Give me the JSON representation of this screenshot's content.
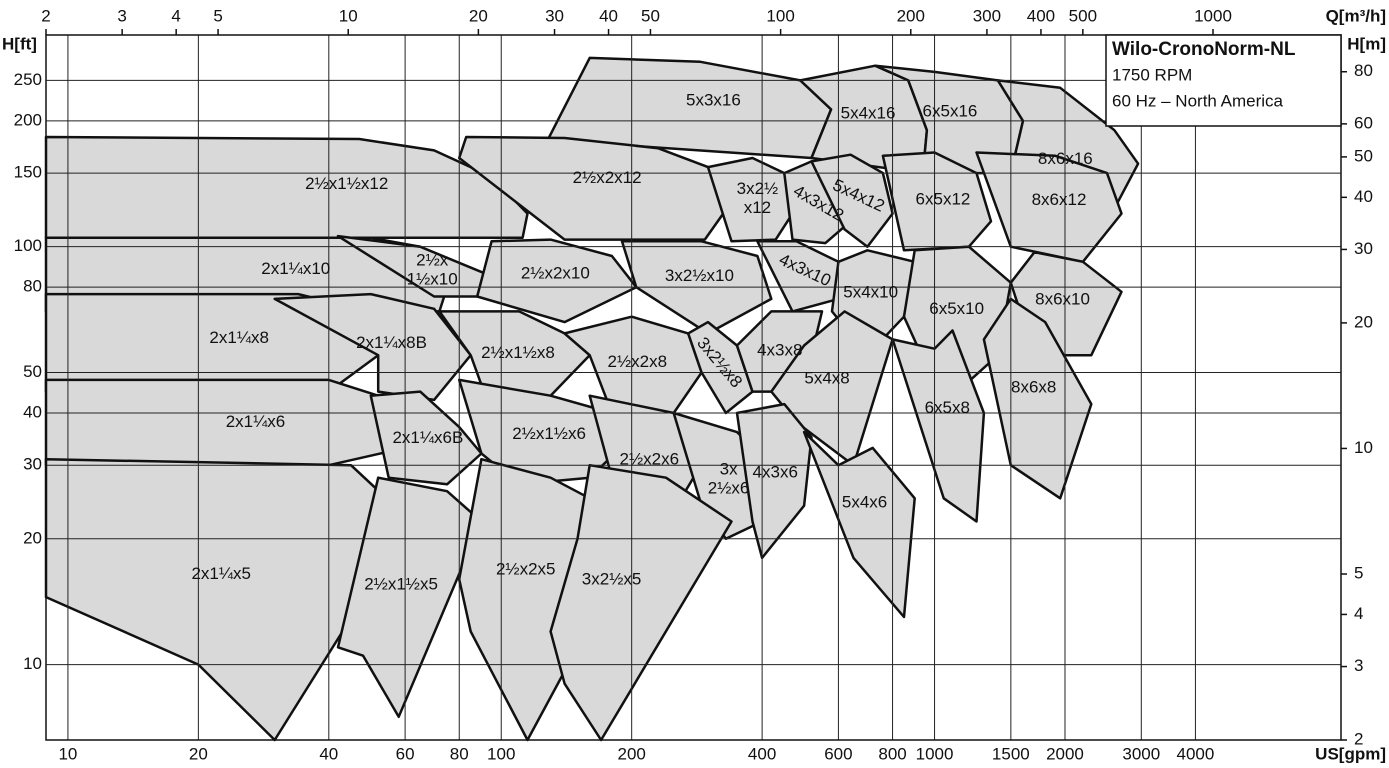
{
  "chart_data": {
    "type": "range-map",
    "title": "Wilo-CronoNorm-NL",
    "subtitle": [
      "1750 RPM",
      "60 Hz – North America"
    ],
    "x_label": "US[gpm]",
    "x2_label": "Q[m³/h]",
    "y_label": "H[ft]",
    "y2_label": "H[m]",
    "log_x": true,
    "log_y": true,
    "grid": true,
    "color": "#d9d9d9",
    "xlim": [
      8.9,
      8670
    ],
    "xticks": [
      10,
      20,
      40,
      60,
      80,
      100,
      200,
      400,
      600,
      800,
      1000,
      1500,
      2000,
      3000,
      4000
    ],
    "x2lim": [
      2,
      1977
    ],
    "x2ticks": [
      2,
      3,
      4,
      5,
      10,
      20,
      30,
      40,
      50,
      100,
      200,
      300,
      400,
      500,
      1000
    ],
    "ylim": [
      6.6,
      321
    ],
    "yticks": [
      10,
      20,
      30,
      40,
      50,
      80,
      100,
      150,
      200,
      250
    ],
    "y2lim": [
      2,
      98
    ],
    "y2ticks": [
      2,
      3,
      4,
      5,
      10,
      20,
      30,
      40,
      50,
      60,
      80
    ],
    "regions": [
      {
        "label": "5x3x16",
        "points": [
          [
            128,
            180
          ],
          [
            160,
            283
          ],
          [
            288,
            277
          ],
          [
            490,
            250
          ],
          [
            577,
            213
          ],
          [
            520,
            163
          ]
        ]
      },
      {
        "label": "5x4x16",
        "points": [
          [
            520,
            163
          ],
          [
            577,
            213
          ],
          [
            490,
            250
          ],
          [
            730,
            271
          ],
          [
            870,
            250
          ],
          [
            960,
            190
          ],
          [
            940,
            150
          ]
        ]
      },
      {
        "label": "6x5x16",
        "points": [
          [
            940,
            150
          ],
          [
            960,
            190
          ],
          [
            870,
            250
          ],
          [
            730,
            271
          ],
          [
            1000,
            262
          ],
          [
            1400,
            250
          ],
          [
            1600,
            200
          ],
          [
            1500,
            150
          ]
        ]
      },
      {
        "label": "8x6x16",
        "points": [
          [
            1500,
            150
          ],
          [
            1600,
            200
          ],
          [
            1400,
            250
          ],
          [
            1950,
            240
          ],
          [
            2600,
            190
          ],
          [
            2950,
            158
          ],
          [
            2650,
            128
          ],
          [
            2300,
            100
          ],
          [
            1700,
            110
          ]
        ]
      },
      {
        "label": "2½x1½x12",
        "points": [
          [
            8.9,
            183
          ],
          [
            47,
            181
          ],
          [
            70,
            170
          ],
          [
            95,
            147
          ],
          [
            115,
            120
          ],
          [
            112,
            105
          ],
          [
            8.9,
            105
          ]
        ]
      },
      {
        "label": "2½x2x12",
        "points": [
          [
            80,
            163
          ],
          [
            83,
            183
          ],
          [
            140,
            182
          ],
          [
            230,
            172
          ],
          [
            300,
            155
          ],
          [
            340,
            128
          ],
          [
            295,
            104
          ],
          [
            140,
            104
          ]
        ]
      },
      {
        "label": [
          "3x2½",
          "x12"
        ],
        "points": [
          [
            300,
            155
          ],
          [
            380,
            163
          ],
          [
            450,
            150
          ],
          [
            470,
            120
          ],
          [
            430,
            104
          ],
          [
            340,
            103
          ]
        ]
      },
      {
        "label": "4x3x12",
        "points": [
          [
            450,
            150
          ],
          [
            520,
            160
          ],
          [
            620,
            140
          ],
          [
            640,
            115
          ],
          [
            560,
            102
          ],
          [
            470,
            104
          ]
        ]
      },
      {
        "label": "5x4x12",
        "points": [
          [
            520,
            160
          ],
          [
            640,
            166
          ],
          [
            760,
            150
          ],
          [
            800,
            120
          ],
          [
            700,
            100
          ],
          [
            620,
            110
          ]
        ]
      },
      {
        "label": "6x5x12",
        "points": [
          [
            760,
            165
          ],
          [
            1000,
            168
          ],
          [
            1250,
            150
          ],
          [
            1350,
            115
          ],
          [
            1200,
            100
          ],
          [
            850,
            98
          ]
        ]
      },
      {
        "label": "8x6x12",
        "points": [
          [
            1250,
            168
          ],
          [
            1900,
            165
          ],
          [
            2500,
            150
          ],
          [
            2700,
            120
          ],
          [
            2200,
            92
          ],
          [
            1500,
            100
          ]
        ]
      },
      {
        "label": "2x1¼x10",
        "points": [
          [
            8.9,
            105
          ],
          [
            50,
            105
          ],
          [
            65,
            100
          ],
          [
            77,
            87
          ],
          [
            72,
            70
          ],
          [
            8.9,
            70
          ]
        ]
      },
      {
        "label": [
          "2½x",
          "1½x10"
        ],
        "points": [
          [
            42,
            106
          ],
          [
            65,
            100
          ],
          [
            95,
            85
          ],
          [
            88,
            76
          ],
          [
            70,
            76
          ]
        ]
      },
      {
        "label": "2½x2x10",
        "points": [
          [
            88,
            76
          ],
          [
            95,
            103
          ],
          [
            130,
            104
          ],
          [
            180,
            95
          ],
          [
            205,
            80
          ],
          [
            140,
            66
          ]
        ]
      },
      {
        "label": "3x2½x10",
        "points": [
          [
            205,
            80
          ],
          [
            190,
            103
          ],
          [
            290,
            103
          ],
          [
            390,
            95
          ],
          [
            420,
            75
          ],
          [
            300,
            62
          ]
        ]
      },
      {
        "label": "4x3x10",
        "points": [
          [
            390,
            103
          ],
          [
            480,
            103
          ],
          [
            600,
            92
          ],
          [
            600,
            75
          ],
          [
            470,
            70
          ]
        ]
      },
      {
        "label": "5x4x10",
        "points": [
          [
            580,
            70
          ],
          [
            600,
            92
          ],
          [
            700,
            98
          ],
          [
            900,
            92
          ],
          [
            850,
            68
          ],
          [
            700,
            55
          ]
        ]
      },
      {
        "label": "6x5x10",
        "points": [
          [
            850,
            68
          ],
          [
            900,
            98
          ],
          [
            1200,
            100
          ],
          [
            1500,
            82
          ],
          [
            1400,
            55
          ],
          [
            1050,
            42
          ]
        ]
      },
      {
        "label": "8x6x10",
        "points": [
          [
            1500,
            82
          ],
          [
            1700,
            97
          ],
          [
            2200,
            92
          ],
          [
            2700,
            78
          ],
          [
            2300,
            55
          ],
          [
            1700,
            55
          ]
        ]
      },
      {
        "label": "2x1¼x8",
        "points": [
          [
            8.9,
            77
          ],
          [
            34,
            77
          ],
          [
            42,
            73
          ],
          [
            52,
            55
          ],
          [
            40,
            45
          ],
          [
            8.9,
            45
          ]
        ]
      },
      {
        "label": "2x1¼x8B",
        "points": [
          [
            30,
            75
          ],
          [
            50,
            77
          ],
          [
            70,
            71
          ],
          [
            85,
            55
          ],
          [
            70,
            43
          ],
          [
            52,
            45
          ],
          [
            52,
            55
          ]
        ]
      },
      {
        "label": "2½x1½x8",
        "points": [
          [
            72,
            70
          ],
          [
            110,
            70
          ],
          [
            140,
            62
          ],
          [
            160,
            55
          ],
          [
            130,
            44
          ],
          [
            95,
            40
          ],
          [
            85,
            55
          ]
        ]
      },
      {
        "label": "2½x2x8",
        "points": [
          [
            140,
            62
          ],
          [
            200,
            68
          ],
          [
            270,
            62
          ],
          [
            290,
            50
          ],
          [
            250,
            40
          ],
          [
            180,
            40
          ],
          [
            160,
            55
          ]
        ]
      },
      {
        "label": "3x2½x8",
        "points": [
          [
            270,
            62
          ],
          [
            300,
            66
          ],
          [
            350,
            58
          ],
          [
            380,
            45
          ],
          [
            330,
            40
          ],
          [
            290,
            50
          ]
        ]
      },
      {
        "label": "4x3x8",
        "points": [
          [
            350,
            58
          ],
          [
            420,
            70
          ],
          [
            550,
            70
          ],
          [
            520,
            55
          ],
          [
            450,
            45
          ],
          [
            380,
            45
          ]
        ]
      },
      {
        "label": "5x4x8",
        "points": [
          [
            420,
            45
          ],
          [
            500,
            58
          ],
          [
            620,
            70
          ],
          [
            800,
            60
          ],
          [
            650,
            30
          ],
          [
            480,
            38
          ]
        ]
      },
      {
        "label": "6x5x8",
        "points": [
          [
            800,
            60
          ],
          [
            1000,
            57
          ],
          [
            1100,
            63
          ],
          [
            1300,
            40
          ],
          [
            1250,
            22
          ],
          [
            1050,
            25
          ]
        ]
      },
      {
        "label": "8x6x8",
        "points": [
          [
            1300,
            60
          ],
          [
            1500,
            75
          ],
          [
            1800,
            66
          ],
          [
            2300,
            42
          ],
          [
            1950,
            25
          ],
          [
            1500,
            30
          ]
        ]
      },
      {
        "label": "2x1¼x6",
        "points": [
          [
            8.9,
            48
          ],
          [
            40,
            48
          ],
          [
            52,
            44
          ],
          [
            60,
            33
          ],
          [
            40,
            30
          ],
          [
            8.9,
            30
          ]
        ]
      },
      {
        "label": "2x1¼x6B",
        "points": [
          [
            50,
            44
          ],
          [
            65,
            45
          ],
          [
            80,
            37
          ],
          [
            90,
            32
          ],
          [
            75,
            27
          ],
          [
            55,
            28
          ]
        ]
      },
      {
        "label": "2½x1½x6",
        "points": [
          [
            80,
            48
          ],
          [
            130,
            44
          ],
          [
            180,
            40
          ],
          [
            200,
            35
          ],
          [
            160,
            28
          ],
          [
            110,
            27
          ],
          [
            90,
            32
          ]
        ]
      },
      {
        "label": "2½x2x6",
        "points": [
          [
            160,
            44
          ],
          [
            250,
            40
          ],
          [
            300,
            32
          ],
          [
            260,
            25
          ],
          [
            200,
            22
          ],
          [
            180,
            28
          ]
        ]
      },
      {
        "label": [
          "3x",
          "2½x6"
        ],
        "points": [
          [
            250,
            40
          ],
          [
            350,
            36
          ],
          [
            420,
            30
          ],
          [
            400,
            22
          ],
          [
            330,
            20
          ],
          [
            290,
            24
          ]
        ]
      },
      {
        "label": "4x3x6",
        "points": [
          [
            350,
            40
          ],
          [
            450,
            42
          ],
          [
            520,
            35
          ],
          [
            500,
            24
          ],
          [
            400,
            18
          ],
          [
            380,
            22
          ]
        ]
      },
      {
        "label": "5x4x6",
        "points": [
          [
            500,
            36
          ],
          [
            600,
            30
          ],
          [
            720,
            33
          ],
          [
            900,
            25
          ],
          [
            850,
            13
          ],
          [
            650,
            18
          ]
        ]
      },
      {
        "label": "2x1¼x5",
        "points": [
          [
            8.9,
            31
          ],
          [
            45,
            30
          ],
          [
            62,
            22
          ],
          [
            30,
            6.6
          ],
          [
            20,
            10
          ],
          [
            8.9,
            14.5
          ]
        ]
      },
      {
        "label": "2½x1½x5",
        "points": [
          [
            52,
            28
          ],
          [
            75,
            26
          ],
          [
            90,
            22
          ],
          [
            58,
            7.5
          ],
          [
            48,
            10.5
          ],
          [
            42,
            11
          ]
        ]
      },
      {
        "label": "2½x2x5",
        "points": [
          [
            90,
            31
          ],
          [
            130,
            28
          ],
          [
            160,
            25
          ],
          [
            170,
            14
          ],
          [
            115,
            6.6
          ],
          [
            85,
            12
          ],
          [
            80,
            16
          ]
        ]
      },
      {
        "label": "3x2½x5",
        "points": [
          [
            160,
            30
          ],
          [
            240,
            28
          ],
          [
            340,
            22
          ],
          [
            170,
            6.6
          ],
          [
            140,
            9
          ],
          [
            130,
            12
          ],
          [
            150,
            20
          ]
        ]
      }
    ]
  }
}
